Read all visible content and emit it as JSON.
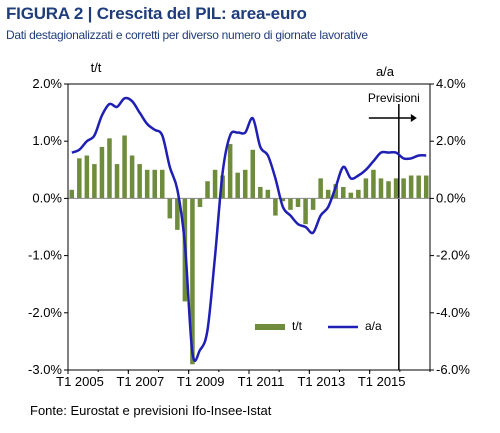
{
  "header": {
    "title": "FIGURA 2 | Crescita del PIL: area-euro",
    "subtitle": "Dati destagionalizzati e corretti per diverso numero di giornate lavorative"
  },
  "footer": {
    "source": "Fonte: Eurostat e previsioni Ifo-Insee-Istat"
  },
  "colors": {
    "bars": "#6e8c3c",
    "line": "#1f1fb4",
    "title": "#1f3d7a"
  },
  "chart_data": {
    "type": "bar+line",
    "left_axis_label": "t/t",
    "right_axis_label": "a/a",
    "left_ylim": [
      -3.0,
      2.0
    ],
    "right_ylim": [
      -6.0,
      4.0
    ],
    "left_ticks": [
      "2.0%",
      "1.0%",
      "0.0%",
      "-1.0%",
      "-2.0%",
      "-3.0%"
    ],
    "right_ticks": [
      "4.0%",
      "2.0%",
      "0.0%",
      "-2.0%",
      "-4.0%",
      "-6.0%"
    ],
    "x_tick_labels": [
      "T1 2005",
      "T1 2007",
      "T1 2009",
      "T1 2011",
      "T1 2013",
      "T1 2015"
    ],
    "forecast_label": "Previsioni",
    "legend": {
      "bars": "t/t",
      "line": "a/a"
    },
    "grid": false,
    "quarters": [
      "2005Q1",
      "2005Q2",
      "2005Q3",
      "2005Q4",
      "2006Q1",
      "2006Q2",
      "2006Q3",
      "2006Q4",
      "2007Q1",
      "2007Q2",
      "2007Q3",
      "2007Q4",
      "2008Q1",
      "2008Q2",
      "2008Q3",
      "2008Q4",
      "2009Q1",
      "2009Q2",
      "2009Q3",
      "2009Q4",
      "2010Q1",
      "2010Q2",
      "2010Q3",
      "2010Q4",
      "2011Q1",
      "2011Q2",
      "2011Q3",
      "2011Q4",
      "2012Q1",
      "2012Q2",
      "2012Q3",
      "2012Q4",
      "2013Q1",
      "2013Q2",
      "2013Q3",
      "2013Q4",
      "2014Q1",
      "2014Q2",
      "2014Q3",
      "2014Q4",
      "2015Q1",
      "2015Q2",
      "2015Q3",
      "2015Q4",
      "2016Q1",
      "2016Q2",
      "2016Q3",
      "2016Q4"
    ],
    "series": [
      {
        "name": "t/t",
        "kind": "bar",
        "values": [
          0.15,
          0.7,
          0.75,
          0.6,
          0.9,
          1.05,
          0.6,
          1.1,
          0.75,
          0.6,
          0.5,
          0.5,
          0.5,
          -0.35,
          -0.55,
          -1.8,
          -2.9,
          -0.15,
          0.3,
          0.5,
          0.4,
          0.95,
          0.45,
          0.5,
          0.85,
          0.2,
          0.15,
          -0.3,
          -0.05,
          -0.2,
          -0.15,
          -0.45,
          -0.2,
          0.35,
          0.15,
          0.25,
          0.2,
          0.1,
          0.15,
          0.35,
          0.5,
          0.35,
          0.3,
          0.35,
          0.35,
          0.4,
          0.4,
          0.4
        ]
      },
      {
        "name": "a/a",
        "kind": "line",
        "values": [
          1.6,
          1.7,
          2.0,
          2.2,
          2.9,
          3.3,
          3.2,
          3.5,
          3.4,
          3.0,
          2.6,
          2.4,
          2.2,
          1.1,
          0.3,
          -1.6,
          -5.4,
          -5.3,
          -4.6,
          -2.0,
          0.9,
          2.2,
          2.3,
          2.3,
          2.8,
          1.8,
          1.5,
          0.7,
          -0.3,
          -0.6,
          -0.9,
          -1.0,
          -1.2,
          -0.6,
          -0.3,
          0.4,
          1.1,
          0.7,
          0.8,
          1.0,
          1.3,
          1.6,
          1.6,
          1.6,
          1.4,
          1.4,
          1.5,
          1.5
        ]
      }
    ]
  }
}
